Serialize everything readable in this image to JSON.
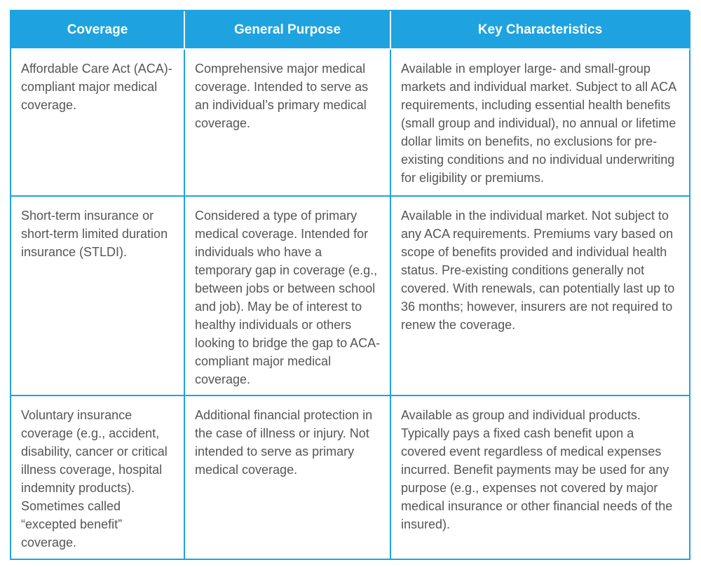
{
  "headers": [
    "Coverage",
    "General Purpose",
    "Key Characteristics"
  ],
  "rows": [
    {
      "coverage": "Affordable Care Act (ACA)-compliant major medical coverage.",
      "purpose": "Comprehensive major medical coverage. Intended to serve as an individual’s primary medical coverage.",
      "characteristics": "Available in employer large- and small-group markets and individual market. Subject to all ACA requirements, including essential health benefits (small group and individual), no annual or lifetime dollar limits on benefits, no exclusions for pre-existing conditions and no individual underwriting for eligibility or premiums."
    },
    {
      "coverage": "Short-term insurance or short-term limited duration insurance (STLDI).",
      "purpose": "Considered a type of primary medical coverage. Intended for individuals who have a temporary gap in coverage (e.g., between jobs or between school and job). May be of interest to healthy individuals or others looking to bridge the gap to ACA-compliant major medical coverage.",
      "characteristics": "Available in the individual market. Not subject to any ACA requirements. Premiums vary based on scope of benefits provided and individual health status. Pre-existing conditions generally not covered.  With renewals, can potentially last up to 36 months; however, insurers are not required to renew the coverage."
    },
    {
      "coverage": "Voluntary insurance coverage (e.g., accident, disability, cancer or critical illness coverage, hospital indemnity products).  Sometimes called “excepted benefit” coverage.",
      "purpose": "Additional financial protection in the case of illness or injury. Not intended to serve as primary medical coverage.",
      "characteristics": "Available as group and individual products. Typically pays a fixed cash benefit upon a covered event regardless of medical expenses incurred. Benefit payments may be used for any purpose (e.g., expenses not covered by major medical insurance or other financial needs of the insured)."
    }
  ]
}
